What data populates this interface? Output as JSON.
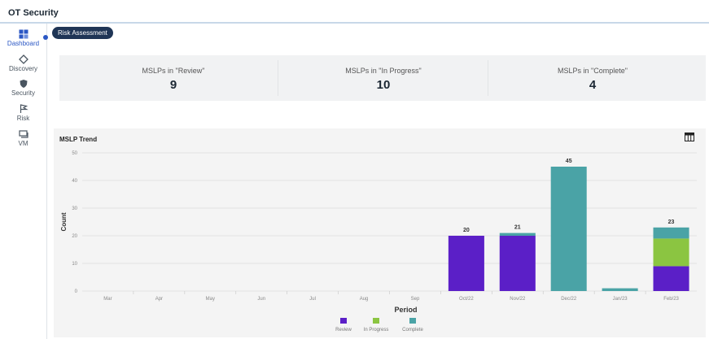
{
  "app": {
    "title": "OT Security"
  },
  "sidebar": {
    "items": [
      {
        "label": "Dashboard",
        "icon": "dashboard-icon"
      },
      {
        "label": "Discovery",
        "icon": "discovery-icon"
      },
      {
        "label": "Security",
        "icon": "shield-icon"
      },
      {
        "label": "Risk",
        "icon": "flag-icon"
      },
      {
        "label": "VM",
        "icon": "vm-icon"
      }
    ]
  },
  "tabs": {
    "active": "Risk Assessment"
  },
  "kpis": [
    {
      "label": "MSLPs in \"Review\"",
      "value": "9"
    },
    {
      "label": "MSLPs in \"In Progress\"",
      "value": "10"
    },
    {
      "label": "MSLPs in \"Complete\"",
      "value": "4"
    }
  ],
  "chart": {
    "title": "MSLP Trend",
    "toolbar_icon": "table-icon"
  },
  "colors": {
    "review": "#5b1fc7",
    "in_progress": "#8bc541",
    "complete": "#4aa3a6",
    "accent": "#2b57c4"
  },
  "chart_data": {
    "type": "bar",
    "stacked": true,
    "title": "MSLP Trend",
    "xlabel": "Period",
    "ylabel": "Count",
    "ylim": [
      0,
      50
    ],
    "yticks": [
      0,
      10,
      20,
      30,
      40,
      50
    ],
    "grid": true,
    "legend_position": "bottom",
    "categories": [
      "Mar",
      "Apr",
      "May",
      "Jun",
      "Jul",
      "Aug",
      "Sep",
      "Oct/22",
      "Nov/22",
      "Dec/22",
      "Jan/23",
      "Feb/23"
    ],
    "series": [
      {
        "name": "Review",
        "color": "#5b1fc7",
        "values": [
          0,
          0,
          0,
          0,
          0,
          0,
          0,
          20,
          20,
          0,
          0,
          9
        ]
      },
      {
        "name": "In Progress",
        "color": "#8bc541",
        "values": [
          0,
          0,
          0,
          0,
          0,
          0,
          0,
          0,
          0,
          0,
          0,
          10
        ]
      },
      {
        "name": "Complete",
        "color": "#4aa3a6",
        "values": [
          0,
          0,
          0,
          0,
          0,
          0,
          0,
          0,
          1,
          45,
          1,
          4
        ]
      }
    ],
    "totals": [
      "",
      "",
      "",
      "",
      "",
      "",
      "",
      "20",
      "21",
      "45",
      "",
      "23"
    ]
  }
}
